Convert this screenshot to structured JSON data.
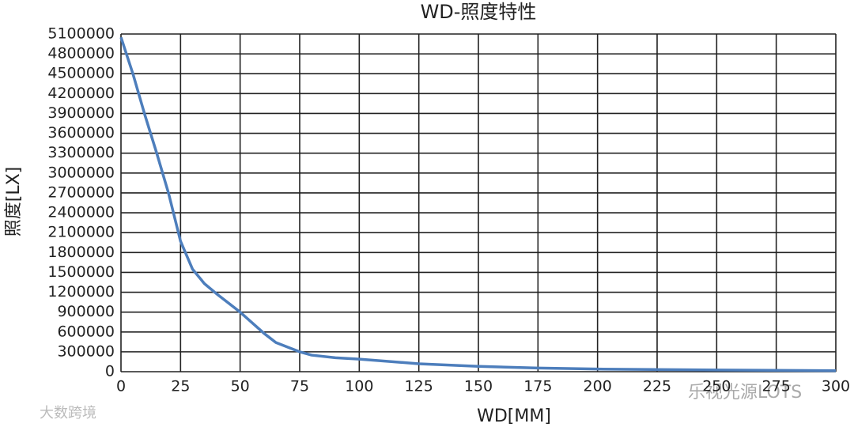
{
  "chart_data": {
    "type": "line",
    "title": "WD-照度特性",
    "x_label": "WD[MM]",
    "y_label": "照度[LX]",
    "x": [
      0,
      5,
      10,
      15,
      20,
      25,
      30,
      35,
      40,
      50,
      60,
      65,
      75,
      80,
      90,
      100,
      125,
      150,
      175,
      200,
      250,
      300
    ],
    "series": [
      {
        "name": "照度",
        "color": "#4d7ebc",
        "values": [
          5050000,
          4500000,
          3880000,
          3300000,
          2690000,
          1970000,
          1550000,
          1330000,
          1180000,
          900000,
          580000,
          440000,
          300000,
          250000,
          210000,
          190000,
          120000,
          80000,
          55000,
          40000,
          25000,
          15000
        ]
      }
    ],
    "xlim": [
      0,
      300
    ],
    "xticks": [
      0,
      25,
      50,
      75,
      100,
      125,
      150,
      175,
      200,
      225,
      250,
      275,
      300
    ],
    "ylim": [
      0,
      5100000
    ],
    "yticks": [
      0,
      300000,
      600000,
      900000,
      1200000,
      1500000,
      1800000,
      2100000,
      2400000,
      2700000,
      3000000,
      3300000,
      3600000,
      3900000,
      4200000,
      4500000,
      4800000,
      5100000
    ],
    "grid": true,
    "watermarks": [
      "大数跨境",
      "乐视光源LOTS"
    ]
  }
}
